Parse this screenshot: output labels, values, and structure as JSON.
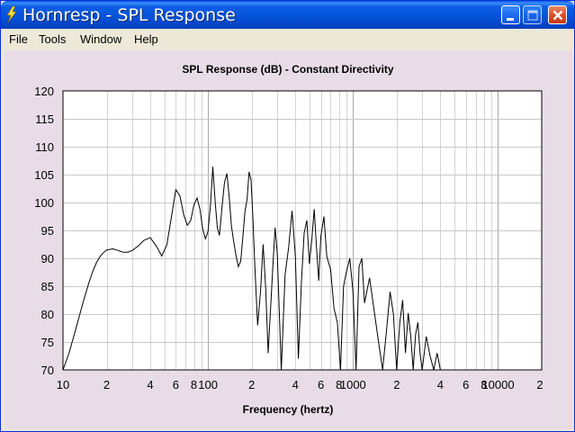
{
  "window": {
    "title": "Hornresp - SPL Response"
  },
  "menu": {
    "file": "File",
    "tools": "Tools",
    "window": "Window",
    "help": "Help"
  },
  "icons": {
    "app": "lightning-icon",
    "minimize": "minimize-icon",
    "maximize": "maximize-icon",
    "close": "close-icon"
  },
  "colors": {
    "titlebar": "#0551d9",
    "client_background": "#e8dde6",
    "plot_background": "#ffffff",
    "curve": "#000000",
    "grid": "#c8c8c8"
  },
  "chart_data": {
    "type": "line",
    "title": "SPL Response (dB) - Constant Directivity",
    "xlabel": "Frequency (hertz)",
    "ylabel": "",
    "x_scale": "log",
    "xlim": [
      10,
      20000
    ],
    "ylim": [
      70,
      120
    ],
    "grid": true,
    "x_tick_labels": [
      "10",
      "2",
      "4",
      "6",
      "8",
      "100",
      "2",
      "4",
      "6",
      "8",
      "1000",
      "2",
      "4",
      "6",
      "8",
      "10000",
      "2"
    ],
    "x_tick_values": [
      10,
      20,
      40,
      60,
      80,
      100,
      200,
      400,
      600,
      800,
      1000,
      2000,
      4000,
      6000,
      8000,
      10000,
      20000
    ],
    "y_tick_labels": [
      "120",
      "115",
      "110",
      "105",
      "100",
      "95",
      "90",
      "85",
      "80",
      "75",
      "70"
    ],
    "y_tick_values": [
      120,
      115,
      110,
      105,
      100,
      95,
      90,
      85,
      80,
      75,
      70
    ],
    "series": [
      {
        "x": [
          10,
          11,
          12,
          13,
          14,
          15,
          16,
          17,
          18,
          19,
          20,
          22,
          24,
          26,
          28,
          30,
          33,
          36,
          40,
          44,
          48,
          52,
          56,
          60,
          64,
          68,
          72,
          76,
          80,
          84,
          88,
          92,
          96,
          100,
          104,
          108,
          112,
          116,
          120,
          125,
          130,
          135,
          140,
          145,
          150,
          156,
          162,
          168,
          174,
          180,
          186,
          192,
          198,
          204,
          210,
          220,
          230,
          240,
          250,
          260,
          270,
          280,
          290,
          300,
          320,
          340,
          360,
          380,
          400,
          420,
          440,
          460,
          480,
          500,
          520,
          540,
          560,
          580,
          600,
          630,
          660,
          700,
          740,
          780,
          820,
          860,
          900,
          950,
          1000,
          1050,
          1100,
          1150,
          1200,
          1300,
          1400,
          1500,
          1600,
          1700,
          1800,
          1900,
          2000,
          2100,
          2200,
          2300,
          2400,
          2500,
          2600,
          2700,
          2800,
          2900,
          3000,
          3200,
          3400,
          3600,
          3800,
          4000
        ],
        "y": [
          70,
          73,
          76.5,
          79.8,
          82.8,
          85.4,
          87.6,
          89.2,
          90.3,
          91,
          91.5,
          91.7,
          91.4,
          91.1,
          91.1,
          91.4,
          92.2,
          93.2,
          93.7,
          92.2,
          90.4,
          92.4,
          97.5,
          102.3,
          101.2,
          97.8,
          95.9,
          96.8,
          99.6,
          100.8,
          98.8,
          95.2,
          93.5,
          94.8,
          99.5,
          106.4,
          100.2,
          95.5,
          94.1,
          99.3,
          103.6,
          105.2,
          101,
          95.8,
          93.2,
          90.5,
          88.5,
          89.5,
          93.8,
          98.5,
          100.6,
          105.5,
          104,
          97,
          89,
          78,
          84,
          92.5,
          84.5,
          73,
          81,
          88.5,
          95.5,
          91,
          70,
          87,
          92,
          98.5,
          90.5,
          72,
          85.5,
          94.5,
          96.8,
          89,
          93.5,
          98.8,
          92,
          86,
          94,
          97.5,
          90.3,
          88,
          81,
          78.5,
          70,
          85,
          87.5,
          90,
          84,
          70,
          88.5,
          90,
          82,
          86.5,
          80.5,
          75,
          70,
          77,
          84,
          80,
          70,
          78.5,
          82.5,
          73,
          80.2,
          76,
          70,
          76.3,
          78.5,
          73,
          70,
          76,
          72.5,
          70,
          73,
          70
        ]
      }
    ]
  }
}
